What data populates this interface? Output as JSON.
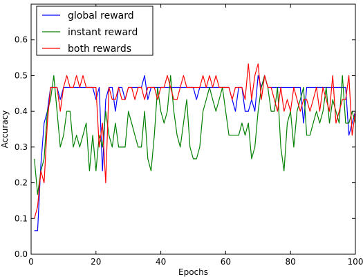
{
  "chart_data": {
    "type": "line",
    "xlabel": "Epochs",
    "ylabel": "Accuracy",
    "xlim": [
      0,
      100
    ],
    "ylim": [
      0,
      0.7
    ],
    "xticks": [
      0,
      20,
      40,
      60,
      80,
      100
    ],
    "yticks": [
      0.0,
      0.1,
      0.2,
      0.3,
      0.4,
      0.5,
      0.6
    ],
    "xtick_labels": [
      "0",
      "20",
      "40",
      "60",
      "80",
      "100"
    ],
    "ytick_labels": [
      "0.0",
      "0.1",
      "0.2",
      "0.3",
      "0.4",
      "0.5",
      "0.6"
    ],
    "grid": false,
    "legend_position": "top-left",
    "x": [
      1,
      2,
      3,
      4,
      5,
      6,
      7,
      8,
      9,
      10,
      11,
      12,
      13,
      14,
      15,
      16,
      17,
      18,
      19,
      20,
      21,
      22,
      23,
      24,
      25,
      26,
      27,
      28,
      29,
      30,
      31,
      32,
      33,
      34,
      35,
      36,
      37,
      38,
      39,
      40,
      41,
      42,
      43,
      44,
      45,
      46,
      47,
      48,
      49,
      50,
      51,
      52,
      53,
      54,
      55,
      56,
      57,
      58,
      59,
      60,
      61,
      62,
      63,
      64,
      65,
      66,
      67,
      68,
      69,
      70,
      71,
      72,
      73,
      74,
      75,
      76,
      77,
      78,
      79,
      80,
      81,
      82,
      83,
      84,
      85,
      86,
      87,
      88,
      89,
      90,
      91,
      92,
      93,
      94,
      95,
      96,
      97,
      98,
      99,
      100
    ],
    "series": [
      {
        "name": "global reward",
        "color": "#0000ff",
        "values": [
          0.066,
          0.066,
          0.25,
          0.367,
          0.4,
          0.467,
          0.467,
          0.467,
          0.433,
          0.467,
          0.467,
          0.467,
          0.467,
          0.467,
          0.467,
          0.467,
          0.467,
          0.467,
          0.467,
          0.433,
          0.467,
          0.233,
          0.433,
          0.467,
          0.467,
          0.4,
          0.467,
          0.467,
          0.433,
          0.467,
          0.467,
          0.467,
          0.467,
          0.467,
          0.5,
          0.433,
          0.467,
          0.467,
          0.467,
          0.467,
          0.467,
          0.467,
          0.467,
          0.467,
          0.467,
          0.467,
          0.467,
          0.467,
          0.467,
          0.467,
          0.433,
          0.467,
          0.467,
          0.467,
          0.467,
          0.467,
          0.467,
          0.467,
          0.467,
          0.467,
          0.467,
          0.433,
          0.4,
          0.467,
          0.467,
          0.4,
          0.4,
          0.433,
          0.4,
          0.5,
          0.467,
          0.5,
          0.467,
          0.467,
          0.467,
          0.467,
          0.467,
          0.467,
          0.467,
          0.467,
          0.467,
          0.467,
          0.467,
          0.367,
          0.467,
          0.467,
          0.467,
          0.467,
          0.467,
          0.467,
          0.467,
          0.467,
          0.467,
          0.467,
          0.467,
          0.467,
          0.467,
          0.333,
          0.367,
          0.4
        ]
      },
      {
        "name": "instant reward",
        "color": "#008000",
        "values": [
          0.267,
          0.167,
          0.233,
          0.267,
          0.4,
          0.433,
          0.5,
          0.4,
          0.3,
          0.333,
          0.4,
          0.4,
          0.3,
          0.333,
          0.3,
          0.333,
          0.367,
          0.233,
          0.333,
          0.233,
          0.333,
          0.3,
          0.4,
          0.333,
          0.3,
          0.367,
          0.3,
          0.3,
          0.3,
          0.4,
          0.367,
          0.333,
          0.3,
          0.3,
          0.4,
          0.267,
          0.233,
          0.333,
          0.467,
          0.4,
          0.367,
          0.4,
          0.5,
          0.4,
          0.333,
          0.3,
          0.367,
          0.433,
          0.3,
          0.267,
          0.267,
          0.3,
          0.4,
          0.433,
          0.467,
          0.433,
          0.4,
          0.433,
          0.467,
          0.4,
          0.333,
          0.333,
          0.333,
          0.333,
          0.367,
          0.333,
          0.367,
          0.267,
          0.3,
          0.4,
          0.467,
          0.5,
          0.467,
          0.4,
          0.4,
          0.467,
          0.3,
          0.233,
          0.367,
          0.4,
          0.3,
          0.4,
          0.433,
          0.467,
          0.333,
          0.333,
          0.367,
          0.4,
          0.367,
          0.4,
          0.467,
          0.367,
          0.433,
          0.4,
          0.367,
          0.5,
          0.367,
          0.367,
          0.4,
          0.367
        ]
      },
      {
        "name": "both rewards",
        "color": "#ff0000",
        "values": [
          0.1,
          0.133,
          0.233,
          0.2,
          0.367,
          0.467,
          0.467,
          0.467,
          0.4,
          0.467,
          0.5,
          0.467,
          0.467,
          0.5,
          0.467,
          0.5,
          0.467,
          0.467,
          0.467,
          0.467,
          0.3,
          0.367,
          0.2,
          0.467,
          0.433,
          0.433,
          0.467,
          0.433,
          0.433,
          0.467,
          0.467,
          0.433,
          0.467,
          0.467,
          0.433,
          0.467,
          0.467,
          0.467,
          0.433,
          0.467,
          0.467,
          0.5,
          0.467,
          0.433,
          0.433,
          0.467,
          0.5,
          0.467,
          0.467,
          0.467,
          0.467,
          0.467,
          0.5,
          0.467,
          0.5,
          0.467,
          0.5,
          0.467,
          0.467,
          0.467,
          0.467,
          0.433,
          0.467,
          0.467,
          0.467,
          0.433,
          0.533,
          0.433,
          0.5,
          0.533,
          0.433,
          0.5,
          0.467,
          0.467,
          0.433,
          0.4,
          0.467,
          0.4,
          0.433,
          0.4,
          0.467,
          0.433,
          0.4,
          0.433,
          0.433,
          0.4,
          0.433,
          0.467,
          0.4,
          0.467,
          0.433,
          0.4,
          0.5,
          0.367,
          0.4,
          0.433,
          0.433,
          0.5,
          0.333,
          0.4
        ]
      }
    ]
  }
}
